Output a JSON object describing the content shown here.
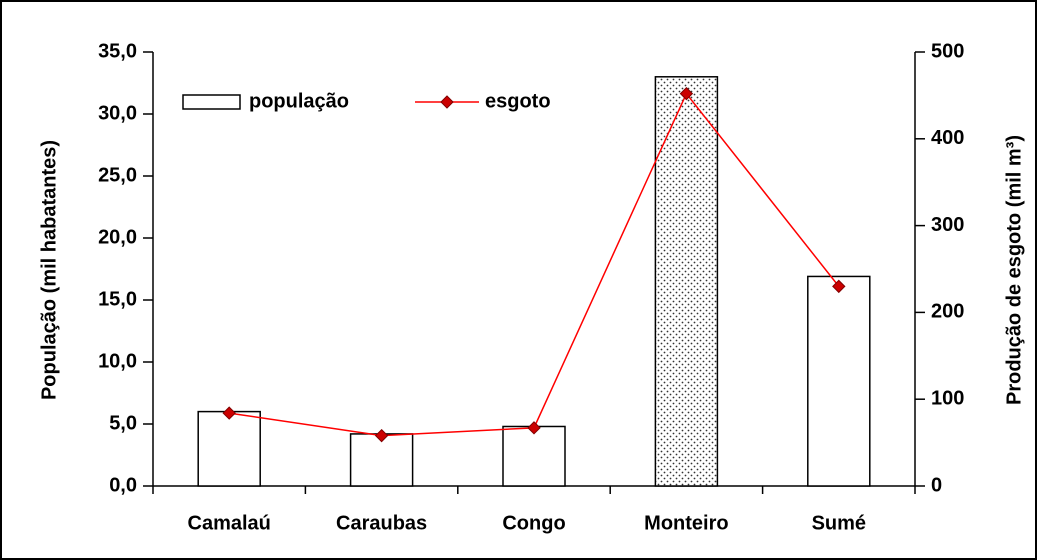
{
  "chart_data": {
    "type": "bar_line",
    "categories": [
      "Camalaú",
      "Caraubas",
      "Congo",
      "Monteiro",
      "Sumé"
    ],
    "ylabel": "População (mil habatantes)",
    "y2label": "Produção de esgoto (mil m³)",
    "ylim": [
      0,
      35
    ],
    "yticks": [
      {
        "value": 0,
        "label": "0,0"
      },
      {
        "value": 5,
        "label": "5,0"
      },
      {
        "value": 10,
        "label": "10,0"
      },
      {
        "value": 15,
        "label": "15,0"
      },
      {
        "value": 20,
        "label": "20,0"
      },
      {
        "value": 25,
        "label": "25,0"
      },
      {
        "value": 30,
        "label": "30,0"
      },
      {
        "value": 35,
        "label": "35,0"
      }
    ],
    "y2lim": [
      0,
      500
    ],
    "y2ticks": [
      0,
      100,
      200,
      300,
      400,
      500
    ],
    "legend": "upper left",
    "series": [
      {
        "name": "população",
        "kind": "bar",
        "color": "#000000",
        "fills": [
          "#ffffff",
          "#ffffff",
          "#ffffff",
          "stipple",
          "#ffffff"
        ],
        "values": [
          6.0,
          4.2,
          4.8,
          33.0,
          16.9
        ]
      },
      {
        "name": "esgoto",
        "kind": "line",
        "axis": "y2",
        "color": "#ff0000",
        "marker_color": "#cc0000",
        "values": [
          84,
          58,
          67,
          452,
          230
        ]
      }
    ]
  }
}
